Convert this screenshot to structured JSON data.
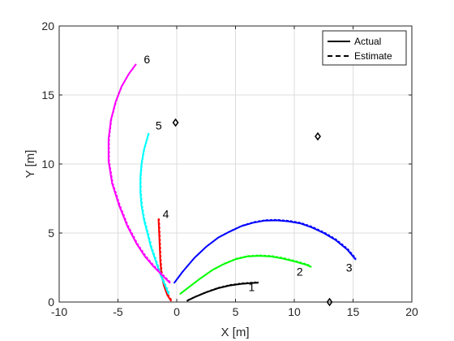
{
  "chart_data": {
    "type": "line",
    "xlabel": "X [m]",
    "ylabel": "Y [m]",
    "xlim": [
      -10,
      20
    ],
    "ylim": [
      0,
      20
    ],
    "xticks": [
      -10,
      -5,
      0,
      5,
      10,
      15,
      20
    ],
    "yticks": [
      0,
      5,
      10,
      15,
      20
    ],
    "xtick_labels": [
      "-10",
      "-5",
      "0",
      "5",
      "10",
      "15",
      "20"
    ],
    "ytick_labels": [
      "0",
      "5",
      "10",
      "15",
      "20"
    ],
    "grid": true,
    "legend": {
      "placement": "top-right",
      "entries": [
        {
          "label": "Actual",
          "style": "solid"
        },
        {
          "label": "Estimate",
          "style": "dashed"
        }
      ]
    },
    "series": [
      {
        "label": "1",
        "color": "#000000",
        "points": [
          [
            0.9,
            0.1
          ],
          [
            1.5,
            0.35
          ],
          [
            2.5,
            0.7
          ],
          [
            3.5,
            1.0
          ],
          [
            4.5,
            1.2
          ],
          [
            5.5,
            1.32
          ],
          [
            6.5,
            1.38
          ],
          [
            6.9,
            1.4
          ]
        ],
        "annotation": {
          "text": "1",
          "x": 6.1,
          "y": 0.8
        }
      },
      {
        "label": "2",
        "color": "#00ff00",
        "points": [
          [
            0.3,
            0.6
          ],
          [
            1.0,
            1.05
          ],
          [
            2.0,
            1.7
          ],
          [
            3.0,
            2.3
          ],
          [
            4.0,
            2.75
          ],
          [
            5.0,
            3.1
          ],
          [
            6.0,
            3.3
          ],
          [
            7.0,
            3.35
          ],
          [
            8.0,
            3.3
          ],
          [
            9.0,
            3.15
          ],
          [
            10.0,
            2.95
          ],
          [
            11.0,
            2.7
          ],
          [
            11.4,
            2.55
          ]
        ],
        "annotation": {
          "text": "2",
          "x": 10.2,
          "y": 1.9
        }
      },
      {
        "label": "3",
        "color": "#0000ff",
        "points": [
          [
            -0.2,
            1.4
          ],
          [
            0.5,
            2.2
          ],
          [
            1.5,
            3.2
          ],
          [
            2.5,
            4.0
          ],
          [
            3.5,
            4.65
          ],
          [
            4.5,
            5.1
          ],
          [
            5.5,
            5.5
          ],
          [
            6.5,
            5.75
          ],
          [
            7.5,
            5.9
          ],
          [
            8.5,
            5.92
          ],
          [
            9.5,
            5.85
          ],
          [
            10.5,
            5.7
          ],
          [
            11.5,
            5.4
          ],
          [
            12.5,
            5.0
          ],
          [
            13.5,
            4.5
          ],
          [
            14.5,
            3.8
          ],
          [
            15.2,
            3.1
          ]
        ],
        "annotation": {
          "text": "3",
          "x": 14.4,
          "y": 2.2
        }
      },
      {
        "label": "4",
        "color": "#ff0000",
        "points": [
          [
            -0.5,
            0.1
          ],
          [
            -0.8,
            0.5
          ],
          [
            -1.1,
            1.2
          ],
          [
            -1.3,
            2.0
          ],
          [
            -1.4,
            3.0
          ],
          [
            -1.45,
            4.0
          ],
          [
            -1.5,
            5.0
          ],
          [
            -1.55,
            6.0
          ]
        ],
        "annotation": {
          "text": "4",
          "x": -1.2,
          "y": 6.1
        }
      },
      {
        "label": "5",
        "color": "#00ffff",
        "points": [
          [
            -0.7,
            0.6
          ],
          [
            -1.0,
            1.2
          ],
          [
            -1.4,
            2.0
          ],
          [
            -1.8,
            3.0
          ],
          [
            -2.2,
            4.0
          ],
          [
            -2.5,
            5.0
          ],
          [
            -2.8,
            6.0
          ],
          [
            -3.0,
            7.0
          ],
          [
            -3.1,
            8.0
          ],
          [
            -3.1,
            9.0
          ],
          [
            -3.0,
            10.0
          ],
          [
            -2.8,
            11.0
          ],
          [
            -2.4,
            12.2
          ]
        ],
        "annotation": {
          "text": "5",
          "x": -1.8,
          "y": 12.5
        }
      },
      {
        "label": "6",
        "color": "#ff00ff",
        "points": [
          [
            -0.6,
            1.4
          ],
          [
            -1.3,
            2.0
          ],
          [
            -2.0,
            2.6
          ],
          [
            -2.7,
            3.3
          ],
          [
            -3.4,
            4.2
          ],
          [
            -4.2,
            5.5
          ],
          [
            -4.9,
            7.0
          ],
          [
            -5.5,
            8.6
          ],
          [
            -5.8,
            10.2
          ],
          [
            -5.8,
            11.8
          ],
          [
            -5.6,
            13.2
          ],
          [
            -5.2,
            14.5
          ],
          [
            -4.7,
            15.6
          ],
          [
            -4.1,
            16.5
          ],
          [
            -3.5,
            17.2
          ]
        ],
        "annotation": {
          "text": "6",
          "x": -2.8,
          "y": 17.3
        }
      }
    ],
    "landmarks": [
      [
        -0.1,
        13.0
      ],
      [
        12.0,
        12.0
      ],
      [
        13.0,
        0.0
      ]
    ]
  }
}
